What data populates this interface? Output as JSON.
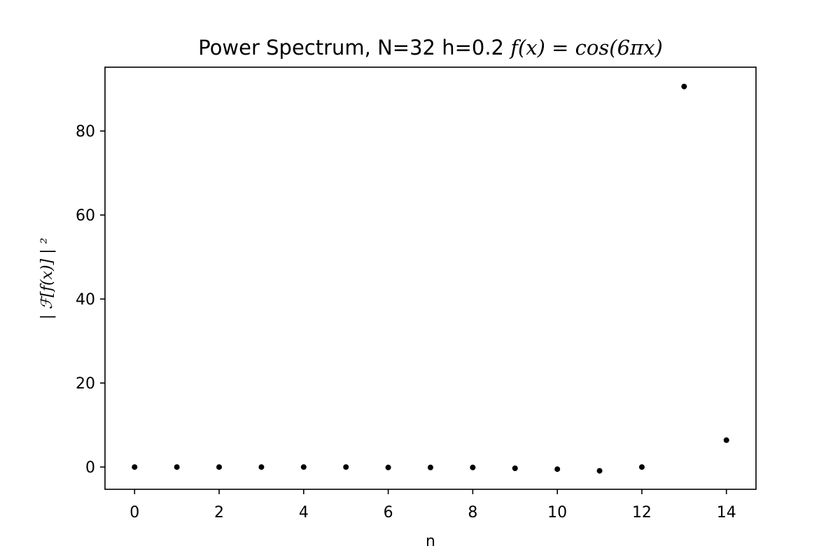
{
  "chart_data": {
    "type": "scatter",
    "title_prefix": "Power Spectrum, N=32  h=0.2 ",
    "title_math": "f(x) = cos(6πx)",
    "xlabel": "n",
    "ylabel": "| ℱ[f(x)] | ²",
    "xlim": [
      -0.7,
      14.7
    ],
    "ylim": [
      -5.3,
      95.2
    ],
    "xticks": [
      0,
      2,
      4,
      6,
      8,
      10,
      12,
      14
    ],
    "yticks": [
      0,
      20,
      40,
      60,
      80
    ],
    "grid": false,
    "marker_color": "#000000",
    "x": [
      0,
      1,
      2,
      3,
      4,
      5,
      6,
      7,
      8,
      9,
      10,
      11,
      12,
      13,
      14
    ],
    "y": [
      0.0,
      0.0,
      0.0,
      0.0,
      0.0,
      0.0,
      -0.1,
      -0.1,
      -0.1,
      -0.3,
      -0.5,
      -0.9,
      0.0,
      90.6,
      6.4
    ]
  }
}
